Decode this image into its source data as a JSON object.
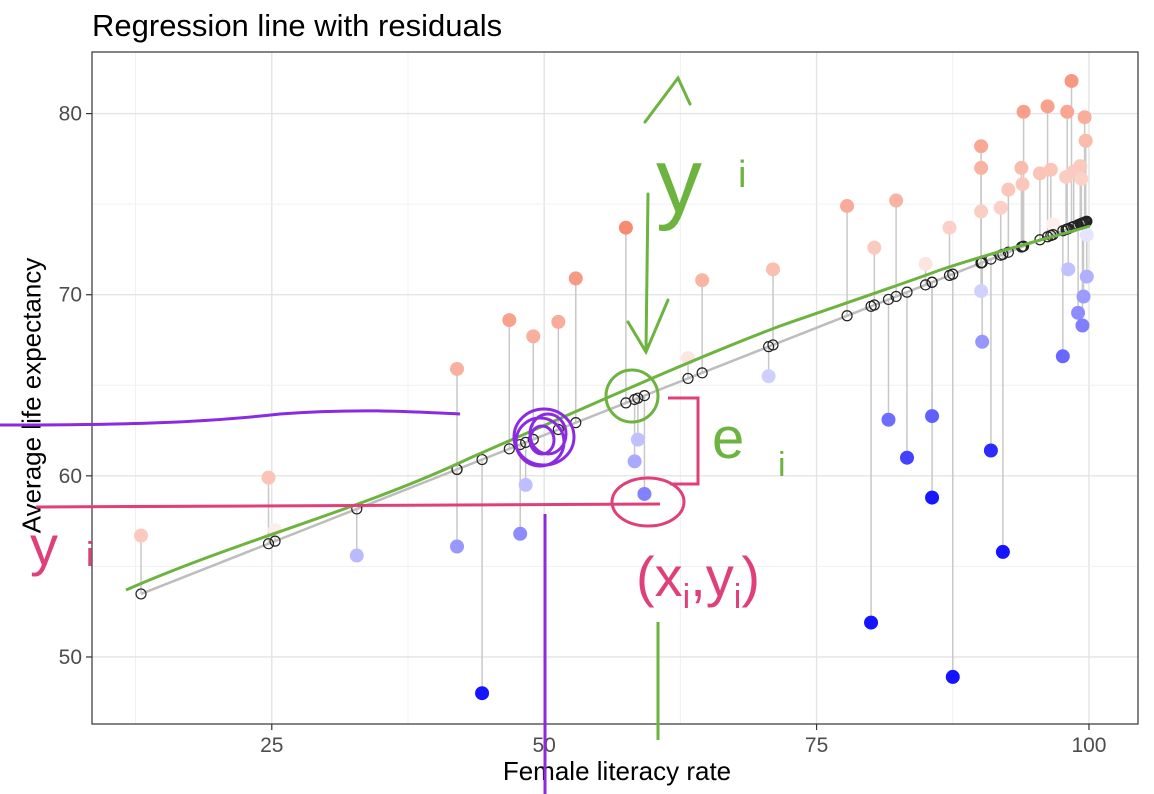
{
  "chart_data": {
    "type": "scatter",
    "title": "Regression line with residuals",
    "xlabel": "Female literacy rate",
    "ylabel": "Average life expectancy",
    "xlim": [
      8.5,
      104.5
    ],
    "ylim": [
      46.3,
      83.4
    ],
    "xticks": [
      25,
      50,
      75,
      100
    ],
    "yticks": [
      50,
      60,
      70,
      80
    ],
    "grid": true,
    "legend": "none",
    "regression": {
      "intercept": 50.4,
      "slope": 0.237
    },
    "points": [
      {
        "x": 13.0,
        "y": 56.7
      },
      {
        "x": 24.7,
        "y": 59.9
      },
      {
        "x": 25.3,
        "y": 57.0
      },
      {
        "x": 32.8,
        "y": 55.6
      },
      {
        "x": 42.0,
        "y": 56.1
      },
      {
        "x": 42.0,
        "y": 65.9
      },
      {
        "x": 44.3,
        "y": 48.0
      },
      {
        "x": 46.8,
        "y": 68.6
      },
      {
        "x": 47.8,
        "y": 56.8
      },
      {
        "x": 48.3,
        "y": 59.5
      },
      {
        "x": 49.0,
        "y": 67.7
      },
      {
        "x": 51.3,
        "y": 68.5
      },
      {
        "x": 52.9,
        "y": 70.9
      },
      {
        "x": 57.5,
        "y": 73.7
      },
      {
        "x": 58.3,
        "y": 60.8
      },
      {
        "x": 58.6,
        "y": 62.0
      },
      {
        "x": 59.2,
        "y": 59.0
      },
      {
        "x": 63.2,
        "y": 66.5
      },
      {
        "x": 64.5,
        "y": 70.8
      },
      {
        "x": 70.6,
        "y": 65.5
      },
      {
        "x": 71.0,
        "y": 71.4
      },
      {
        "x": 77.8,
        "y": 74.9
      },
      {
        "x": 80.0,
        "y": 51.9
      },
      {
        "x": 80.3,
        "y": 72.6
      },
      {
        "x": 81.6,
        "y": 63.1
      },
      {
        "x": 82.3,
        "y": 75.2
      },
      {
        "x": 83.3,
        "y": 61.0
      },
      {
        "x": 85.0,
        "y": 71.7
      },
      {
        "x": 85.6,
        "y": 63.3
      },
      {
        "x": 85.6,
        "y": 58.8
      },
      {
        "x": 87.2,
        "y": 73.7
      },
      {
        "x": 87.5,
        "y": 48.9
      },
      {
        "x": 90.1,
        "y": 78.2
      },
      {
        "x": 90.1,
        "y": 77.0
      },
      {
        "x": 90.1,
        "y": 74.6
      },
      {
        "x": 90.1,
        "y": 70.2
      },
      {
        "x": 90.2,
        "y": 67.4
      },
      {
        "x": 91.0,
        "y": 61.4
      },
      {
        "x": 91.9,
        "y": 74.8
      },
      {
        "x": 92.1,
        "y": 55.8
      },
      {
        "x": 92.6,
        "y": 75.8
      },
      {
        "x": 93.8,
        "y": 77.0
      },
      {
        "x": 93.9,
        "y": 76.1
      },
      {
        "x": 94.0,
        "y": 80.1
      },
      {
        "x": 95.5,
        "y": 76.7
      },
      {
        "x": 96.2,
        "y": 80.4
      },
      {
        "x": 96.5,
        "y": 76.9
      },
      {
        "x": 96.7,
        "y": 73.9
      },
      {
        "x": 97.6,
        "y": 66.6
      },
      {
        "x": 97.9,
        "y": 76.5
      },
      {
        "x": 98.0,
        "y": 80.1
      },
      {
        "x": 98.1,
        "y": 71.4
      },
      {
        "x": 98.4,
        "y": 81.8
      },
      {
        "x": 98.6,
        "y": 76.8
      },
      {
        "x": 99.0,
        "y": 69.0
      },
      {
        "x": 99.2,
        "y": 77.1
      },
      {
        "x": 99.3,
        "y": 76.4
      },
      {
        "x": 99.4,
        "y": 68.3
      },
      {
        "x": 99.5,
        "y": 69.9
      },
      {
        "x": 99.6,
        "y": 79.8
      },
      {
        "x": 99.7,
        "y": 78.5
      },
      {
        "x": 99.8,
        "y": 73.3
      },
      {
        "x": 99.8,
        "y": 71.0
      }
    ]
  },
  "annotations": {
    "yi": "y",
    "yi_sub": "i",
    "ei": "e",
    "ei_sub": "i",
    "xy": "(x",
    "xy_sub1": "i",
    "xy_comma": ",",
    "xy_y": "y",
    "xy_sub2": "i",
    "xy_close": ")",
    "y1": "y",
    "y1_sub": "i",
    "green": "#6db33f",
    "purple": "#8a2be2",
    "pink": "#e0407a"
  }
}
